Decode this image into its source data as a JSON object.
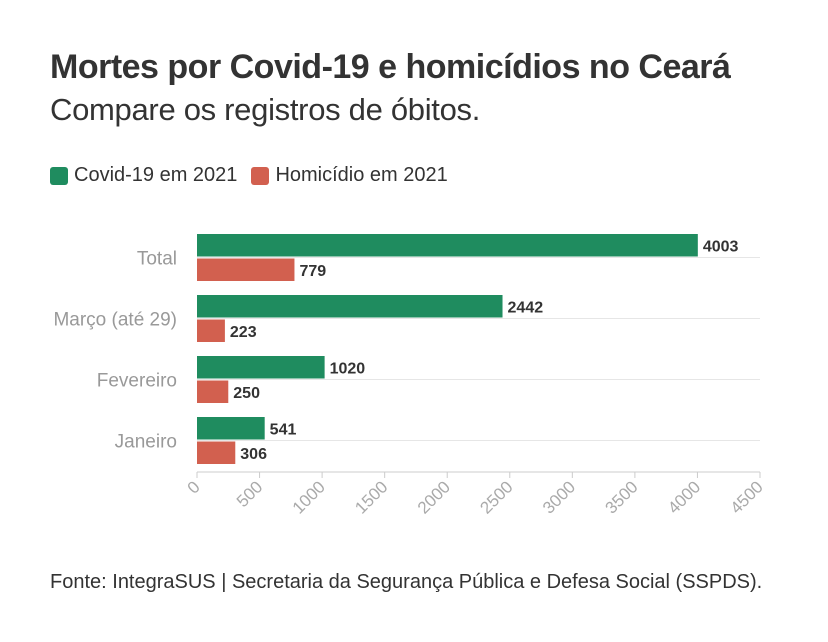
{
  "title": "Mortes por Covid-19 e homicídios no Ceará",
  "subtitle": "Compare os registros de óbitos.",
  "footer": "Fonte: IntegraSUS | Secretaria da Segurança Pública e Defesa Social (SSPDS).",
  "chart_data": {
    "type": "bar",
    "orientation": "horizontal",
    "categories": [
      "Total",
      "Março (até 29)",
      "Fevereiro",
      "Janeiro"
    ],
    "series": [
      {
        "name": "Covid-19 em 2021",
        "color": "#1f8c5f",
        "values": [
          4003,
          2442,
          1020,
          541
        ]
      },
      {
        "name": "Homicídio em 2021",
        "color": "#d2604f",
        "values": [
          779,
          223,
          250,
          306
        ]
      }
    ],
    "xlim": [
      0,
      4500
    ],
    "xticks": [
      "0",
      "500",
      "1000",
      "1500",
      "2000",
      "2500",
      "3000",
      "3500",
      "4000",
      "4500"
    ],
    "grid": false,
    "legend_position": "top-left"
  }
}
